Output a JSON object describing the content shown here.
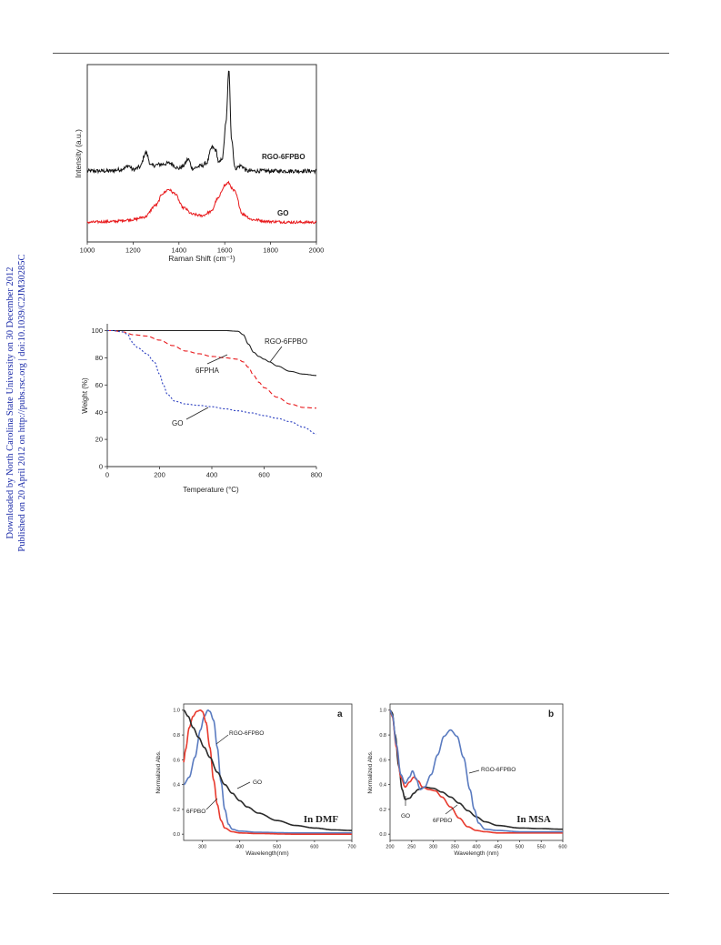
{
  "side_note": {
    "line1": "Downloaded by North Carolina State University on 30 December 2012",
    "line2": "Published on 20 April 2012 on http://pubs.rsc.org | doi:10.1039/C2JM30285C"
  },
  "chart_data": [
    {
      "type": "line",
      "title": "",
      "xlabel": "Raman Shift (cm⁻¹)",
      "ylabel": "Intensity (a.u.)",
      "xlim": [
        1000,
        2000
      ],
      "x_ticks": [
        "1000",
        "1200",
        "1400",
        "1600",
        "1800",
        "2000"
      ],
      "y_ticks": [],
      "grid": false,
      "series": [
        {
          "name": "RGO-6FPBO",
          "color": "#111111",
          "noise": 1.5,
          "x": [
            1000,
            1060,
            1100,
            1140,
            1160,
            1180,
            1200,
            1230,
            1255,
            1280,
            1320,
            1360,
            1400,
            1420,
            1440,
            1460,
            1500,
            1520,
            1545,
            1560,
            1575,
            1590,
            1605,
            1618,
            1630,
            1645,
            1670,
            1700,
            1750,
            1800,
            1900,
            2000
          ],
          "y": [
            4,
            4,
            4,
            5,
            6,
            8,
            5,
            7,
            18,
            8,
            9,
            10,
            6,
            8,
            13,
            6,
            8,
            10,
            22,
            20,
            10,
            14,
            40,
            80,
            28,
            6,
            8,
            4,
            4,
            4,
            4,
            4
          ]
        },
        {
          "name": "GO",
          "color": "#e8191c",
          "noise": 1.0,
          "x": [
            1000,
            1100,
            1200,
            1250,
            1300,
            1330,
            1355,
            1380,
            1420,
            1460,
            1500,
            1540,
            1570,
            1600,
            1615,
            1640,
            1680,
            1720,
            1800,
            1900,
            2000
          ],
          "y": [
            0,
            0.5,
            2,
            4,
            13,
            22,
            25,
            22,
            11,
            6,
            5,
            8,
            18,
            28,
            30,
            24,
            6,
            2,
            0.5,
            0,
            0
          ]
        }
      ],
      "annotations": [
        "RGO-6FPBO",
        "GO"
      ]
    },
    {
      "type": "line",
      "title": "",
      "xlabel": "Temperature (°C)",
      "ylabel": "Weight (%)",
      "xlim": [
        0,
        800
      ],
      "ylim": [
        0,
        105
      ],
      "x_ticks": [
        "0",
        "200",
        "400",
        "600",
        "800"
      ],
      "y_ticks": [
        "0",
        "20",
        "40",
        "60",
        "80",
        "100"
      ],
      "grid": false,
      "series": [
        {
          "name": "RGO-6FPBO",
          "color": "#222222",
          "dash": "",
          "x": [
            20,
            100,
            300,
            450,
            500,
            520,
            540,
            560,
            580,
            600,
            620,
            650,
            700,
            750,
            800
          ],
          "y": [
            100,
            100,
            100,
            100,
            99.5,
            97,
            90,
            84,
            81,
            79,
            77,
            74,
            70,
            68,
            67
          ]
        },
        {
          "name": "6FPHA",
          "color": "#e8191c",
          "dash": "5,3",
          "x": [
            20,
            60,
            100,
            150,
            200,
            250,
            300,
            350,
            400,
            450,
            500,
            520,
            540,
            560,
            580,
            600,
            650,
            700,
            750,
            800
          ],
          "y": [
            100,
            99,
            97,
            96,
            93,
            89,
            85,
            83,
            81,
            80,
            79,
            77,
            73,
            67,
            62,
            58,
            51,
            46,
            43.5,
            43
          ]
        },
        {
          "name": "GO",
          "color": "#2a3ec0",
          "dash": "2,2",
          "x": [
            20,
            60,
            80,
            90,
            100,
            120,
            150,
            180,
            200,
            215,
            230,
            260,
            300,
            350,
            400,
            450,
            500,
            550,
            600,
            650,
            700,
            750,
            800
          ],
          "y": [
            100,
            99,
            97,
            93,
            90,
            87,
            83,
            77,
            68,
            60,
            53,
            48,
            46,
            45,
            44,
            42.5,
            41,
            39.5,
            37.5,
            35.5,
            33,
            29,
            24
          ]
        }
      ],
      "annotations": [
        "RGO-6FPBO",
        "6FPHA",
        "GO"
      ]
    },
    {
      "type": "line",
      "title": "",
      "panel_label": "a",
      "inset_text": "In DMF",
      "xlabel": "Wavelength(nm)",
      "ylabel": "Normalized Abs.",
      "xlim": [
        250,
        700
      ],
      "ylim": [
        -0.05,
        1.05
      ],
      "x_ticks": [
        "300",
        "400",
        "500",
        "600",
        "700"
      ],
      "y_ticks": [
        "0.0",
        "0.2",
        "0.4",
        "0.6",
        "0.8",
        "1.0"
      ],
      "grid": false,
      "series": [
        {
          "name": "RGO-6FPBO",
          "color": "#5a7bc0",
          "x": [
            250,
            265,
            280,
            295,
            305,
            315,
            320,
            330,
            340,
            350,
            360,
            370,
            380,
            400,
            450,
            550,
            700
          ],
          "y": [
            0.4,
            0.46,
            0.62,
            0.84,
            0.95,
            1.0,
            0.99,
            0.92,
            0.7,
            0.42,
            0.2,
            0.08,
            0.04,
            0.025,
            0.015,
            0.01,
            0.01
          ]
        },
        {
          "name": "6FPBO",
          "color": "#e83a2e",
          "x": [
            250,
            255,
            265,
            275,
            285,
            295,
            300,
            310,
            320,
            330,
            340,
            350,
            360,
            380,
            400,
            450,
            550,
            700
          ],
          "y": [
            0.58,
            0.68,
            0.86,
            0.95,
            0.99,
            1.0,
            0.99,
            0.9,
            0.7,
            0.44,
            0.24,
            0.11,
            0.05,
            0.02,
            0.01,
            0.005,
            0,
            0
          ]
        },
        {
          "name": "GO",
          "color": "#2a2a2a",
          "x": [
            250,
            262,
            275,
            290,
            305,
            320,
            340,
            360,
            380,
            400,
            420,
            450,
            500,
            550,
            600,
            650,
            700
          ],
          "y": [
            1.0,
            0.95,
            0.86,
            0.78,
            0.7,
            0.62,
            0.5,
            0.4,
            0.33,
            0.27,
            0.22,
            0.17,
            0.11,
            0.07,
            0.05,
            0.035,
            0.03
          ]
        }
      ],
      "annotations": [
        "RGO-6FPBO",
        "GO",
        "6FPBO"
      ]
    },
    {
      "type": "line",
      "title": "",
      "panel_label": "b",
      "inset_text": "In MSA",
      "xlabel": "Wavelength (nm)",
      "ylabel": "Normalized Abs.",
      "xlim": [
        200,
        600
      ],
      "ylim": [
        -0.05,
        1.05
      ],
      "x_ticks": [
        "200",
        "250",
        "300",
        "350",
        "400",
        "450",
        "500",
        "550",
        "600"
      ],
      "y_ticks": [
        "0.0",
        "0.2",
        "0.4",
        "0.6",
        "0.8",
        "1.0"
      ],
      "grid": false,
      "series": [
        {
          "name": "GO",
          "color": "#2a2a2a",
          "x": [
            200,
            205,
            212,
            220,
            228,
            235,
            245,
            255,
            265,
            280,
            300,
            320,
            340,
            360,
            380,
            400,
            420,
            450,
            500,
            550,
            600
          ],
          "y": [
            1.0,
            0.98,
            0.8,
            0.55,
            0.36,
            0.28,
            0.29,
            0.33,
            0.36,
            0.38,
            0.37,
            0.34,
            0.3,
            0.25,
            0.19,
            0.14,
            0.1,
            0.07,
            0.05,
            0.045,
            0.04
          ]
        },
        {
          "name": "6FPBO",
          "color": "#e83a2e",
          "x": [
            200,
            205,
            215,
            225,
            235,
            245,
            255,
            265,
            275,
            290,
            305,
            320,
            340,
            360,
            380,
            400,
            420,
            450,
            500,
            550,
            600
          ],
          "y": [
            1.0,
            0.95,
            0.7,
            0.46,
            0.38,
            0.42,
            0.46,
            0.43,
            0.38,
            0.36,
            0.35,
            0.3,
            0.22,
            0.13,
            0.06,
            0.03,
            0.02,
            0.01,
            0.01,
            0.01,
            0.01
          ]
        },
        {
          "name": "RGO-6FPBO",
          "color": "#5a7bc0",
          "x": [
            200,
            205,
            215,
            225,
            235,
            245,
            252,
            260,
            270,
            280,
            295,
            310,
            325,
            340,
            355,
            370,
            385,
            395,
            405,
            420,
            450,
            500,
            550,
            600
          ],
          "y": [
            1.0,
            0.96,
            0.72,
            0.48,
            0.41,
            0.46,
            0.51,
            0.45,
            0.36,
            0.38,
            0.48,
            0.64,
            0.79,
            0.84,
            0.79,
            0.62,
            0.36,
            0.2,
            0.09,
            0.04,
            0.03,
            0.02,
            0.02,
            0.02
          ]
        }
      ],
      "annotations": [
        "RGO-6FPBO",
        "GO",
        "6FPBO"
      ]
    }
  ]
}
